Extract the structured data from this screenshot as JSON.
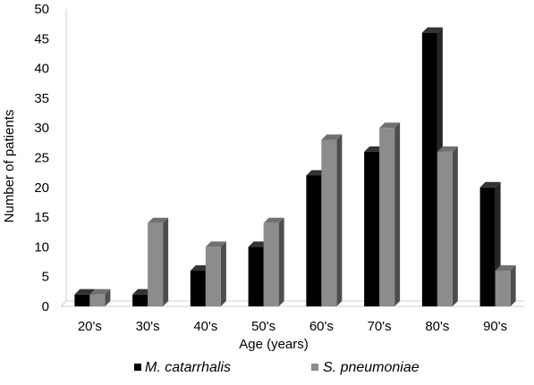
{
  "chart_data": {
    "type": "bar",
    "style": "3d-clustered-column",
    "categories": [
      "20's",
      "30's",
      "40's",
      "50's",
      "60's",
      "70's",
      "80's",
      "90's"
    ],
    "series": [
      {
        "name": "M. catarrhalis",
        "values": [
          2,
          2,
          6,
          10,
          22,
          26,
          46,
          20
        ],
        "color": "#000000"
      },
      {
        "name": "S. pneumoniae",
        "values": [
          2,
          14,
          10,
          14,
          28,
          30,
          26,
          6
        ],
        "color": "#8c8c8c"
      }
    ],
    "xlabel": "Age (years)",
    "ylabel": "Number of patients",
    "ylim": [
      0,
      50
    ],
    "yticks": [
      0,
      5,
      10,
      15,
      20,
      25,
      30,
      35,
      40,
      45,
      50
    ],
    "grid": false,
    "legend_position": "bottom"
  }
}
